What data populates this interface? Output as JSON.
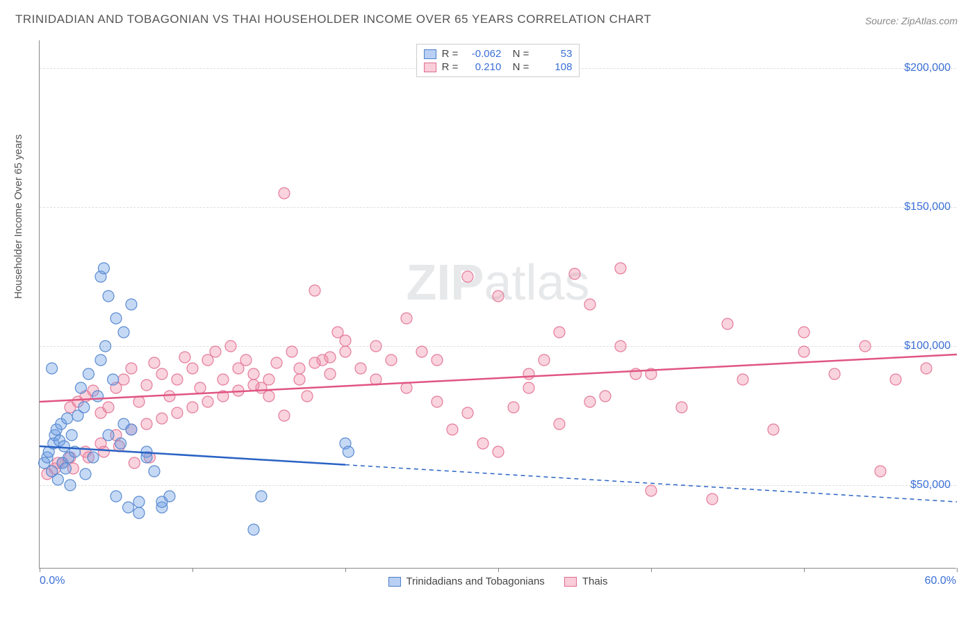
{
  "title": "TRINIDADIAN AND TOBAGONIAN VS THAI HOUSEHOLDER INCOME OVER 65 YEARS CORRELATION CHART",
  "source": "Source: ZipAtlas.com",
  "watermark_bold": "ZIP",
  "watermark_rest": "atlas",
  "ylabel": "Householder Income Over 65 years",
  "chart": {
    "type": "scatter",
    "xlim": [
      0,
      60
    ],
    "ylim": [
      20000,
      210000
    ],
    "x_unit": "%",
    "y_unit": "$",
    "xtick_positions": [
      0,
      10,
      20,
      30,
      40,
      50,
      60
    ],
    "xlabel_min": "0.0%",
    "xlabel_max": "60.0%",
    "ylabels": [
      {
        "value": 50000,
        "label": "$50,000"
      },
      {
        "value": 100000,
        "label": "$100,000"
      },
      {
        "value": 150000,
        "label": "$150,000"
      },
      {
        "value": 200000,
        "label": "$200,000"
      }
    ],
    "grid_color": "#dddddd",
    "background_color": "#ffffff",
    "axis_color": "#888888",
    "marker_radius": 8,
    "marker_stroke_width": 1.2,
    "line_width": 2.5,
    "series": [
      {
        "name": "Trinidadians and Tobagonians",
        "legend_label": "Trinidadians and Tobagonians",
        "fill": "rgba(110,160,230,0.4)",
        "stroke": "#5a8ad0",
        "line_color": "#2962c4",
        "R": "-0.062",
        "N": "53",
        "points_x": [
          0.3,
          0.5,
          0.6,
          0.8,
          0.9,
          1.0,
          1.1,
          1.2,
          1.3,
          1.4,
          1.5,
          1.6,
          1.7,
          1.8,
          1.9,
          2.0,
          2.1,
          2.3,
          2.5,
          2.7,
          2.9,
          3.0,
          3.2,
          3.5,
          3.8,
          4.0,
          4.3,
          4.5,
          4.8,
          5.0,
          5.3,
          5.5,
          5.8,
          6.0,
          6.5,
          4.0,
          4.2,
          5.0,
          5.5,
          6.0,
          7.0,
          7.5,
          8.0,
          6.5,
          7.0,
          8.0,
          8.5,
          14.0,
          14.5,
          20.0,
          20.2,
          4.5,
          0.8
        ],
        "points_y": [
          58000,
          60000,
          62000,
          55000,
          65000,
          68000,
          70000,
          52000,
          66000,
          72000,
          58000,
          64000,
          56000,
          74000,
          60000,
          50000,
          68000,
          62000,
          75000,
          85000,
          78000,
          54000,
          90000,
          60000,
          82000,
          95000,
          100000,
          68000,
          88000,
          46000,
          65000,
          72000,
          42000,
          70000,
          44000,
          125000,
          128000,
          110000,
          105000,
          115000,
          62000,
          55000,
          42000,
          40000,
          60000,
          44000,
          46000,
          34000,
          46000,
          65000,
          62000,
          118000,
          92000
        ],
        "trend": {
          "x1": 0,
          "y1": 64000,
          "x2": 60,
          "y2": 44000,
          "solid_until_x": 20
        }
      },
      {
        "name": "Thais",
        "legend_label": "Thais",
        "fill": "rgba(240,140,165,0.38)",
        "stroke": "#e47a9a",
        "line_color": "#e05582",
        "R": "0.210",
        "N": "108",
        "points_x": [
          1,
          1.5,
          2,
          2.5,
          3,
          3.5,
          4,
          4.5,
          5,
          5.5,
          6,
          6.5,
          7,
          7.5,
          8,
          8.5,
          9,
          9.5,
          10,
          10.5,
          11,
          11.5,
          12,
          12.5,
          13,
          13.5,
          14,
          14.5,
          15,
          15.5,
          16,
          16.5,
          17,
          17.5,
          18,
          18.5,
          19,
          19.5,
          20,
          21,
          22,
          23,
          24,
          25,
          26,
          27,
          28,
          29,
          30,
          31,
          32,
          33,
          34,
          35,
          36,
          37,
          38,
          39,
          40,
          42,
          44,
          46,
          48,
          50,
          52,
          54,
          56,
          58,
          2,
          3,
          4,
          5,
          6,
          7,
          8,
          9,
          10,
          11,
          12,
          13,
          14,
          15,
          16,
          17,
          18,
          19,
          20,
          22,
          24,
          26,
          28,
          30,
          32,
          34,
          36,
          38,
          40,
          45,
          50,
          55,
          0.5,
          1.2,
          2.2,
          3.2,
          4.2,
          5.2,
          6.2,
          7.2
        ],
        "points_y": [
          56000,
          58000,
          78000,
          80000,
          82000,
          84000,
          76000,
          78000,
          85000,
          88000,
          92000,
          80000,
          86000,
          94000,
          90000,
          82000,
          88000,
          96000,
          92000,
          85000,
          95000,
          98000,
          88000,
          100000,
          92000,
          95000,
          90000,
          85000,
          82000,
          94000,
          75000,
          98000,
          88000,
          82000,
          120000,
          95000,
          90000,
          105000,
          102000,
          92000,
          88000,
          95000,
          110000,
          98000,
          80000,
          70000,
          76000,
          65000,
          62000,
          78000,
          85000,
          95000,
          72000,
          126000,
          115000,
          82000,
          128000,
          90000,
          48000,
          78000,
          45000,
          88000,
          70000,
          105000,
          90000,
          100000,
          88000,
          92000,
          60000,
          62000,
          65000,
          68000,
          70000,
          72000,
          74000,
          76000,
          78000,
          80000,
          82000,
          84000,
          86000,
          88000,
          155000,
          92000,
          94000,
          96000,
          98000,
          100000,
          85000,
          95000,
          125000,
          118000,
          90000,
          105000,
          80000,
          100000,
          90000,
          108000,
          98000,
          55000,
          54000,
          58000,
          56000,
          60000,
          62000,
          64000,
          58000,
          60000
        ],
        "trend": {
          "x1": 0,
          "y1": 80000,
          "x2": 60,
          "y2": 97000,
          "solid_until_x": 60
        }
      }
    ]
  },
  "stats_box": {
    "rows": [
      {
        "color": "blue",
        "R": "-0.062",
        "N": "53"
      },
      {
        "color": "pink",
        "R": "0.210",
        "N": "108"
      }
    ]
  }
}
